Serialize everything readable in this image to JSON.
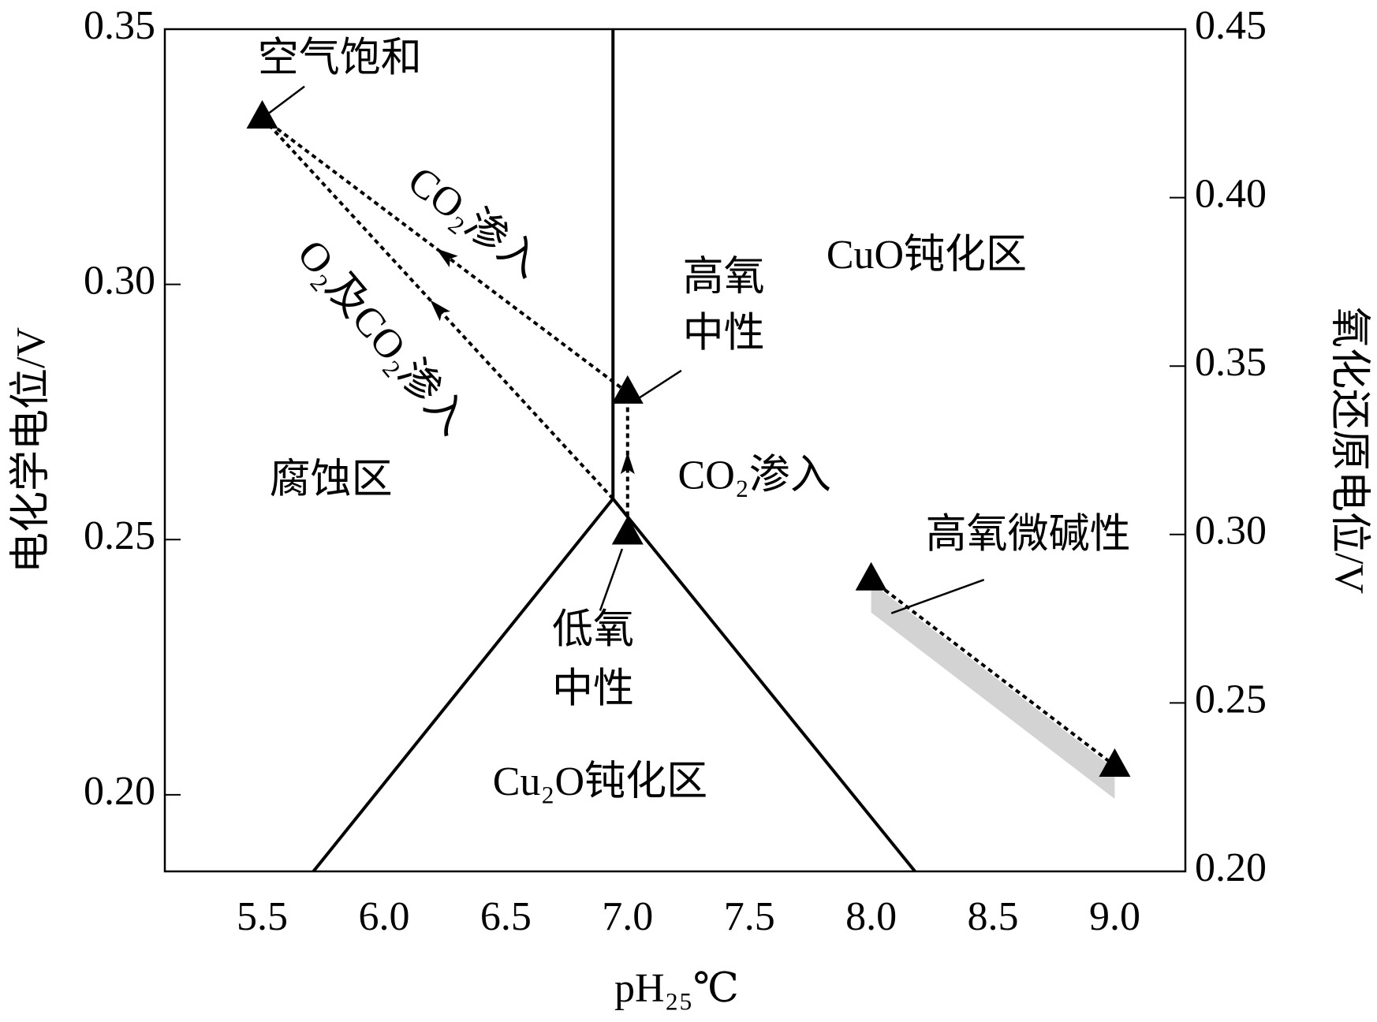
{
  "chart_data": {
    "type": "line",
    "x_label": "pH₂₅℃",
    "y_label": "电化学电位/V",
    "y2_label": "氧化还原电位/V",
    "xlim": [
      5.1,
      9.29
    ],
    "ylim": [
      0.185,
      0.35
    ],
    "y2lim": [
      0.2,
      0.45
    ],
    "xticks": [
      5.5,
      {
        "value": 6,
        "label": "6.0"
      },
      6.5,
      {
        "value": 7,
        "label": "7.0"
      },
      7.5,
      {
        "value": 8,
        "label": "8.0"
      },
      8.5,
      {
        "value": 9,
        "label": "9.0"
      }
    ],
    "yticks": [
      {
        "value": 0.2,
        "label": "0.20"
      },
      0.25,
      {
        "value": 0.3,
        "label": "0.30"
      },
      0.35
    ],
    "y2ticks": [
      {
        "value": 0.2,
        "label": "0.20"
      },
      0.25,
      {
        "value": 0.3,
        "label": "0.30"
      },
      0.35,
      {
        "value": 0.4,
        "label": "0.40"
      },
      0.45
    ],
    "lines": [
      {
        "x": [
          6.94,
          6.94
        ],
        "values": [
          0.35,
          0.258
        ],
        "color": "#000000"
      },
      {
        "x": [
          5.71,
          6.94,
          8.18
        ],
        "values": [
          0.185,
          0.258,
          0.185
        ],
        "color": "#000000"
      }
    ],
    "arrows": [
      {
        "x": [
          6.94,
          5.5
        ],
        "values": [
          0.258,
          0.3327
        ],
        "arrowhead": true
      },
      {
        "x": [
          7.0,
          5.5
        ],
        "values": [
          0.2788,
          0.3327
        ],
        "arrowhead": true
      },
      {
        "x": [
          7.0,
          7.0
        ],
        "values": [
          0.2512,
          0.2788
        ],
        "arrowhead": true
      },
      {
        "x": [
          8.0,
          9.0
        ],
        "values": [
          0.2422,
          0.2057
        ],
        "arrowhead": false
      }
    ],
    "points": {
      "x": [
        5.5,
        7.0,
        7.0,
        8.0,
        9.0
      ],
      "values": [
        0.3327,
        0.2788,
        0.2512,
        0.2422,
        0.2057
      ],
      "color": "#000000"
    },
    "point_labels": [
      [
        "空气饱和"
      ],
      [
        "高氧",
        "中性"
      ],
      [
        "低氧",
        "中性"
      ],
      [
        "高氧微碱性"
      ]
    ],
    "region_labels": [
      "CuO钝化区",
      "腐蚀区",
      "Cu₂O钝化区"
    ],
    "arrow_labels": [
      "O₂及CO₂渗入",
      "CO₂渗入",
      "CO₂渗入"
    ]
  }
}
